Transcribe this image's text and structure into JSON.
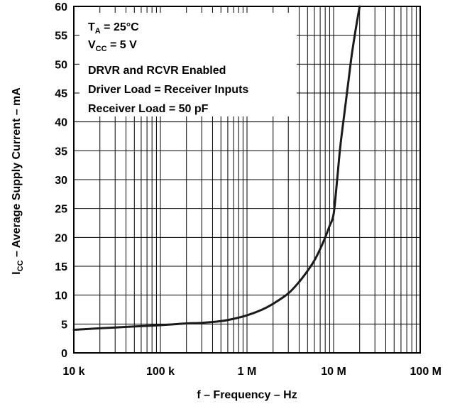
{
  "chart_data": {
    "type": "line",
    "x_scale": "log",
    "xlim": [
      10000,
      100000000
    ],
    "ylim": [
      0,
      60
    ],
    "grid": true,
    "xlabel": "f – Frequency – Hz",
    "ylabel": {
      "main": "I",
      "sub": "CC",
      "rest": " – Average Supply Current – mA"
    },
    "x_ticks": [
      {
        "value": 10000,
        "label": "10 k"
      },
      {
        "value": 100000,
        "label": "100 k"
      },
      {
        "value": 1000000,
        "label": "1 M"
      },
      {
        "value": 10000000,
        "label": "10 M"
      },
      {
        "value": 100000000,
        "label": "100 M"
      }
    ],
    "y_ticks": [
      {
        "value": 0,
        "label": "0"
      },
      {
        "value": 5,
        "label": "5"
      },
      {
        "value": 10,
        "label": "10"
      },
      {
        "value": 15,
        "label": "15"
      },
      {
        "value": 20,
        "label": "20"
      },
      {
        "value": 25,
        "label": "25"
      },
      {
        "value": 30,
        "label": "30"
      },
      {
        "value": 35,
        "label": "35"
      },
      {
        "value": 40,
        "label": "40"
      },
      {
        "value": 45,
        "label": "45"
      },
      {
        "value": 50,
        "label": "50"
      },
      {
        "value": 55,
        "label": "55"
      },
      {
        "value": 60,
        "label": "60"
      }
    ],
    "annotations": {
      "ta": {
        "main": "T",
        "sub": "A",
        "rest": " = 25°C"
      },
      "vcc": {
        "main": "V",
        "sub": "CC",
        "rest": " = 5 V"
      },
      "line1": "DRVR and RCVR Enabled",
      "line2": "Driver Load = Receiver Inputs",
      "line3": "Receiver Load = 50 pF"
    },
    "series": [
      {
        "x": [
          10000,
          30000,
          100000,
          200000,
          300000,
          500000,
          700000,
          1000000,
          1500000,
          2000000,
          3000000,
          4000000,
          5000000,
          6000000,
          7000000,
          8000000,
          9000000,
          10000000,
          11000000,
          12000000,
          14000000,
          16000000,
          18000000,
          20000000
        ],
        "y": [
          4.0,
          4.4,
          4.8,
          5.1,
          5.2,
          5.5,
          5.9,
          6.5,
          7.5,
          8.5,
          10.3,
          12.3,
          14.2,
          16.0,
          18.0,
          20.0,
          22.0,
          24.0,
          30.0,
          36.0,
          44.0,
          51.0,
          56.0,
          60.0
        ]
      }
    ]
  }
}
